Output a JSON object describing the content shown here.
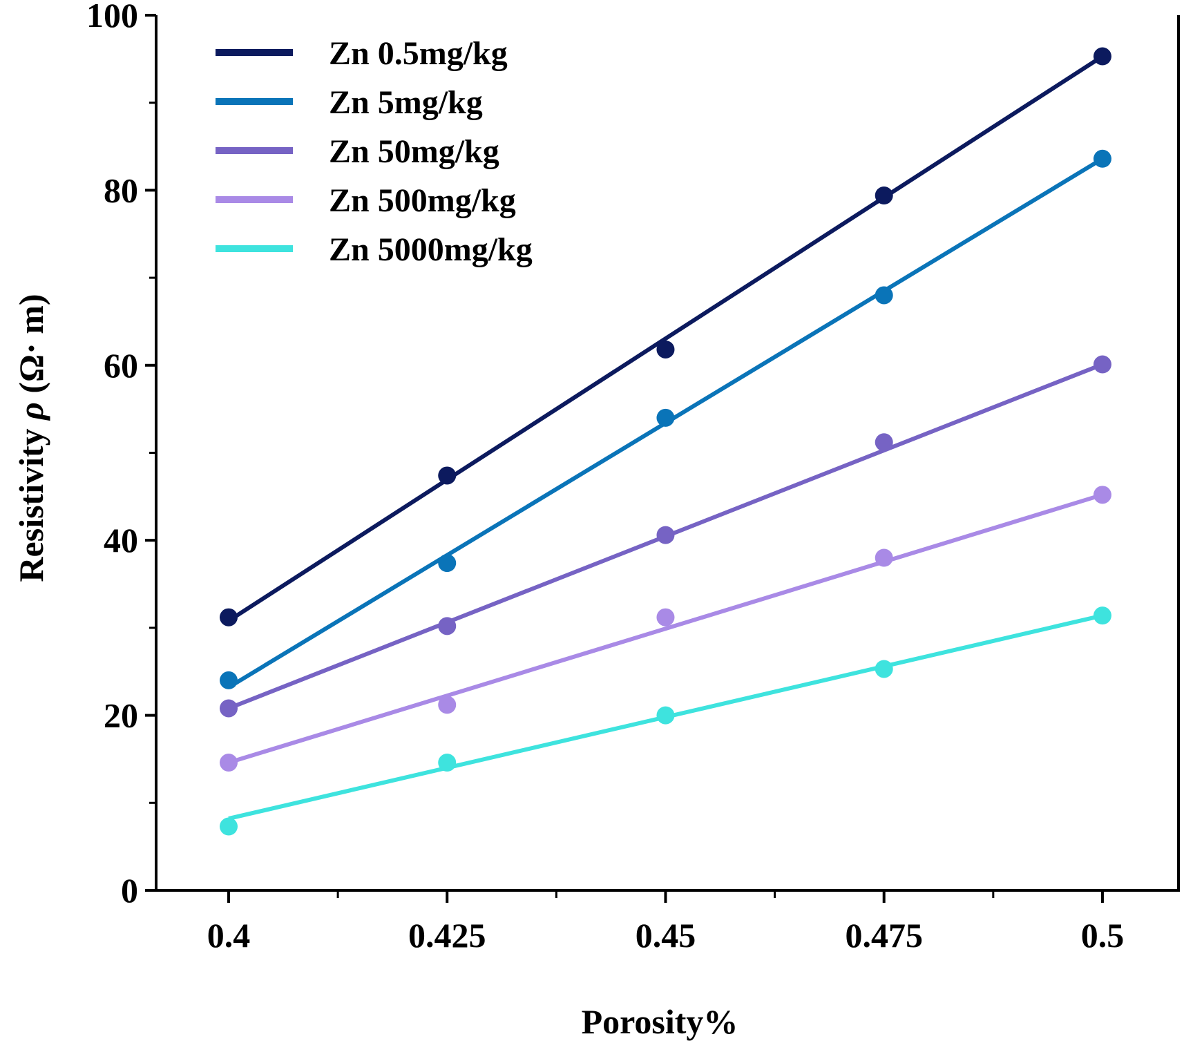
{
  "chart_data": {
    "type": "line",
    "title": "",
    "xlabel": "Porosity%",
    "ylabel_main": "Resistivity ",
    "ylabel_symbol": "ρ",
    "ylabel_unit": " (Ω· m)",
    "xlim": [
      0.3917,
      0.5087
    ],
    "ylim": [
      0,
      100
    ],
    "x_ticks": [
      0.4,
      0.425,
      0.45,
      0.475,
      0.5
    ],
    "x_tick_labels": [
      "0.4",
      "0.425",
      "0.45",
      "0.475",
      "0.5"
    ],
    "x_minor_ticks": [
      0.4125,
      0.4375,
      0.4625,
      0.4875
    ],
    "y_ticks": [
      0,
      20,
      40,
      60,
      80,
      100
    ],
    "y_tick_labels": [
      "0",
      "20",
      "40",
      "60",
      "80",
      "100"
    ],
    "y_minor_ticks": [
      10,
      30,
      50,
      70,
      90
    ],
    "grid": false,
    "legend_position": "top-left",
    "x": [
      0.4,
      0.425,
      0.45,
      0.475,
      0.5
    ],
    "series": [
      {
        "name": "Zn 0.5mg/kg",
        "color": "#0c1a5e",
        "values": [
          31.2,
          47.4,
          61.8,
          79.4,
          95.3
        ],
        "fit": [
          30.8,
          95.3
        ]
      },
      {
        "name": "Zn 5mg/kg",
        "color": "#0a74b8",
        "values": [
          24.0,
          37.4,
          54.0,
          68.0,
          83.6
        ],
        "fit": [
          23.2,
          83.6
        ]
      },
      {
        "name": "Zn 50mg/kg",
        "color": "#7663c4",
        "values": [
          20.8,
          30.2,
          40.6,
          51.2,
          60.1
        ],
        "fit": [
          20.8,
          60.1
        ]
      },
      {
        "name": "Zn 500mg/kg",
        "color": "#a98ae6",
        "values": [
          14.6,
          21.2,
          31.2,
          38.0,
          45.2
        ],
        "fit": [
          14.6,
          45.2
        ]
      },
      {
        "name": "Zn 5000mg/kg",
        "color": "#3ee3de",
        "values": [
          7.3,
          14.6,
          20.0,
          25.3,
          31.4
        ],
        "fit": [
          8.2,
          31.4
        ]
      }
    ]
  }
}
